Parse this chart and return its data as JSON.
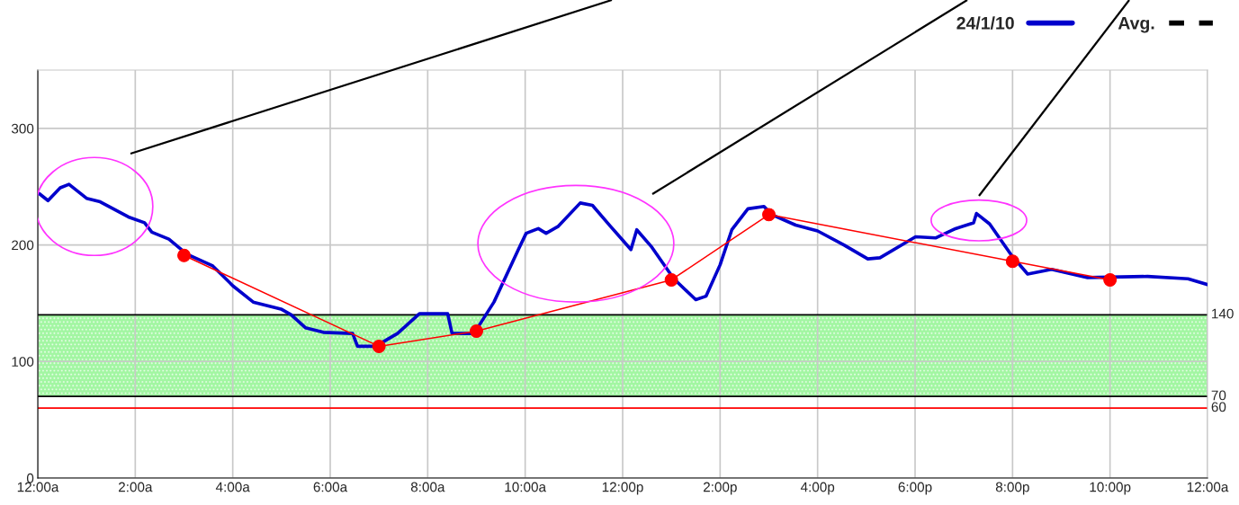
{
  "chart_data": {
    "type": "line",
    "xlim": [
      0,
      24
    ],
    "ylim": [
      0,
      350
    ],
    "xticks": [
      {
        "value": 0,
        "label": "12:00a"
      },
      {
        "value": 2,
        "label": "2:00a"
      },
      {
        "value": 4,
        "label": "4:00a"
      },
      {
        "value": 6,
        "label": "6:00a"
      },
      {
        "value": 8,
        "label": "8:00a"
      },
      {
        "value": 10,
        "label": "10:00a"
      },
      {
        "value": 12,
        "label": "12:00p"
      },
      {
        "value": 14,
        "label": "2:00p"
      },
      {
        "value": 16,
        "label": "4:00p"
      },
      {
        "value": 18,
        "label": "6:00p"
      },
      {
        "value": 20,
        "label": "8:00p"
      },
      {
        "value": 22,
        "label": "10:00p"
      },
      {
        "value": 24,
        "label": "12:00a"
      }
    ],
    "yticks": [
      0,
      100,
      200,
      300
    ],
    "grid": true,
    "legend": "top right",
    "series": [
      {
        "name": "24/1/10",
        "color": "#0000cc",
        "line_style": "solid",
        "marker": "none",
        "x": [
          0.03,
          0.21,
          0.46,
          0.64,
          1.0,
          1.28,
          1.86,
          2.19,
          2.34,
          2.69,
          3.06,
          3.59,
          4.0,
          4.42,
          4.99,
          5.2,
          5.49,
          5.86,
          6.46,
          6.56,
          6.93,
          7.38,
          7.83,
          8.41,
          8.5,
          8.95,
          9.36,
          9.86,
          10.02,
          10.27,
          10.43,
          10.68,
          11.13,
          11.38,
          11.75,
          12.17,
          12.29,
          12.6,
          13.05,
          13.5,
          13.71,
          14.0,
          14.24,
          14.57,
          14.9,
          15.06,
          15.55,
          16.0,
          16.54,
          17.03,
          17.28,
          18.01,
          18.42,
          18.83,
          19.2,
          19.26,
          19.53,
          19.98,
          20.31,
          20.8,
          21.54,
          22.77,
          23.6,
          24
        ],
        "values": [
          244,
          238,
          249,
          252,
          240,
          237,
          224,
          219,
          211,
          205,
          192,
          182,
          165,
          151,
          145,
          140,
          129,
          125,
          124,
          113,
          113,
          124,
          141,
          141,
          124,
          124,
          151,
          196,
          210,
          214,
          210,
          216,
          236,
          234,
          216,
          196,
          213,
          198,
          171,
          153,
          156,
          183,
          213,
          231,
          233,
          226,
          217,
          212,
          200,
          188,
          189,
          207,
          206,
          214,
          219,
          227,
          218,
          191,
          175,
          179,
          172,
          173,
          171,
          166
        ]
      },
      {
        "color": "#ff0000",
        "line_style": "solid",
        "marker": "circle",
        "x": [
          3,
          7,
          9,
          13,
          15,
          20,
          22
        ],
        "values": [
          191,
          113,
          126,
          170,
          226,
          186,
          170
        ]
      },
      {
        "name": "Avg.",
        "color": "#000000",
        "line_style": "dashed",
        "marker": "none"
      }
    ],
    "bands": [
      {
        "axis": "y",
        "from": 70,
        "to": 140,
        "color": "#55ee55"
      }
    ],
    "ref_lines": [
      {
        "axis": "y",
        "value": 140,
        "label": "140",
        "color": "#000000",
        "line_style": "solid"
      },
      {
        "axis": "y",
        "value": 70,
        "label": "70",
        "color": "#000000",
        "line_style": "solid"
      },
      {
        "axis": "y",
        "value": 60,
        "label": "60",
        "color": "#ff0000",
        "line_style": "solid"
      }
    ]
  }
}
